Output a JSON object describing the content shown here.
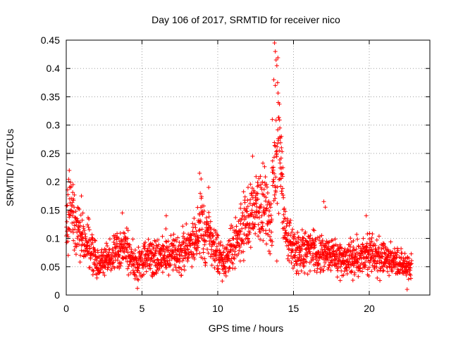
{
  "chart_data": {
    "type": "scatter",
    "title": "Day 106 of 2017, SRMTID for receiver nico",
    "xlabel": "GPS time / hours",
    "ylabel": "SRMTID / TECUs",
    "xlim": [
      0,
      24
    ],
    "ylim": [
      0,
      0.45
    ],
    "xticks": [
      0,
      5,
      10,
      15,
      20
    ],
    "xtick_labels": [
      "0",
      "5",
      "10",
      "15",
      "20"
    ],
    "yticks": [
      0,
      0.05,
      0.1,
      0.15,
      0.2,
      0.25,
      0.3,
      0.35,
      0.4,
      0.45
    ],
    "ytick_labels": [
      "0",
      "0.05",
      "0.1",
      "0.15",
      "0.2",
      "0.25",
      "0.3",
      "0.35",
      "0.4",
      "0.45"
    ],
    "grid": true,
    "marker": "+",
    "series": [
      {
        "name": "SRMTID",
        "color": "#ff0000",
        "profile_x": [
          0,
          0.3,
          0.6,
          1.0,
          1.5,
          2.0,
          2.5,
          3.0,
          3.5,
          4.0,
          4.5,
          5.0,
          5.5,
          6.0,
          6.5,
          7.0,
          7.5,
          8.0,
          8.5,
          8.8,
          9.2,
          9.6,
          10.0,
          10.5,
          11.0,
          11.5,
          12.0,
          12.5,
          13.0,
          13.5,
          13.8,
          14.0,
          14.3,
          14.6,
          15.0,
          15.5,
          16.0,
          16.5,
          17.0,
          17.5,
          18.0,
          18.5,
          19.0,
          19.5,
          20.0,
          20.5,
          21.0,
          21.5,
          22.0,
          22.5,
          22.8
        ],
        "profile_y": [
          0.13,
          0.16,
          0.12,
          0.1,
          0.09,
          0.055,
          0.06,
          0.075,
          0.085,
          0.08,
          0.055,
          0.065,
          0.07,
          0.065,
          0.075,
          0.07,
          0.07,
          0.085,
          0.1,
          0.13,
          0.1,
          0.11,
          0.07,
          0.06,
          0.09,
          0.11,
          0.13,
          0.15,
          0.17,
          0.11,
          0.25,
          0.3,
          0.15,
          0.1,
          0.08,
          0.075,
          0.08,
          0.07,
          0.075,
          0.07,
          0.065,
          0.06,
          0.07,
          0.065,
          0.075,
          0.07,
          0.065,
          0.06,
          0.055,
          0.05,
          0.05
        ],
        "spikes": [
          {
            "x": 0.2,
            "y": 0.22
          },
          {
            "x": 0.45,
            "y": 0.195
          },
          {
            "x": 1.0,
            "y": 0.175
          },
          {
            "x": 3.7,
            "y": 0.145
          },
          {
            "x": 6.6,
            "y": 0.14
          },
          {
            "x": 8.8,
            "y": 0.215
          },
          {
            "x": 8.9,
            "y": 0.205
          },
          {
            "x": 9.4,
            "y": 0.19
          },
          {
            "x": 12.3,
            "y": 0.245
          },
          {
            "x": 12.0,
            "y": 0.19
          },
          {
            "x": 13.75,
            "y": 0.445
          },
          {
            "x": 13.8,
            "y": 0.43
          },
          {
            "x": 13.85,
            "y": 0.415
          },
          {
            "x": 13.9,
            "y": 0.405
          },
          {
            "x": 13.7,
            "y": 0.38
          },
          {
            "x": 13.8,
            "y": 0.37
          },
          {
            "x": 13.95,
            "y": 0.375
          },
          {
            "x": 14.0,
            "y": 0.34
          },
          {
            "x": 13.6,
            "y": 0.31
          },
          {
            "x": 14.1,
            "y": 0.295
          },
          {
            "x": 14.2,
            "y": 0.28
          },
          {
            "x": 14.2,
            "y": 0.26
          },
          {
            "x": 14.3,
            "y": 0.225
          },
          {
            "x": 14.1,
            "y": 0.205
          },
          {
            "x": 17.0,
            "y": 0.165
          },
          {
            "x": 17.1,
            "y": 0.155
          },
          {
            "x": 19.8,
            "y": 0.14
          },
          {
            "x": 13.9,
            "y": 0.06
          },
          {
            "x": 4.7,
            "y": 0.012
          },
          {
            "x": 22.5,
            "y": 0.01
          }
        ]
      }
    ]
  }
}
